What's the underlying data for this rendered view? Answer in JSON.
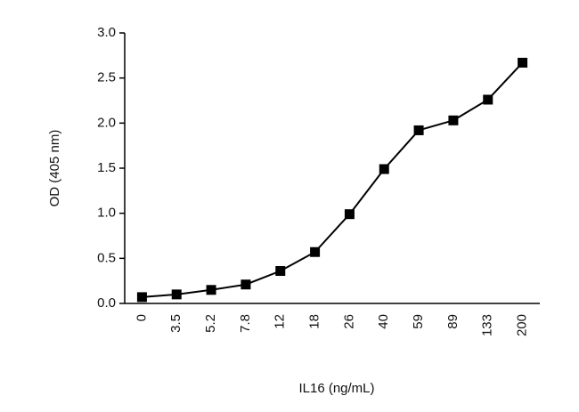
{
  "chart_data": {
    "type": "line",
    "x_label": "IL16 (ng/mL)",
    "y_label": "OD (405 nm)",
    "categories": [
      "0",
      "3.5",
      "5.2",
      "7.8",
      "12",
      "18",
      "26",
      "40",
      "59",
      "89",
      "133",
      "200"
    ],
    "values": [
      0.07,
      0.1,
      0.15,
      0.21,
      0.36,
      0.57,
      0.99,
      1.49,
      1.92,
      2.03,
      2.26,
      2.67
    ],
    "color": "#000000",
    "ylim": [
      0,
      3
    ],
    "yticks": [
      {
        "value": 0,
        "label": "0.0"
      },
      0.5,
      {
        "value": 1,
        "label": "1.0"
      },
      1.5,
      {
        "value": 2,
        "label": "2.0"
      },
      2.5,
      {
        "value": 3,
        "label": "3.0"
      }
    ]
  }
}
